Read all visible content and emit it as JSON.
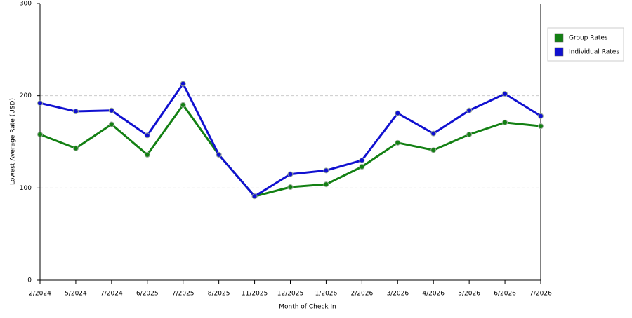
{
  "chart_data": {
    "type": "line",
    "x_label": "Month of Check In",
    "y_label": "Lowest Average Rate (USD)",
    "categories": [
      "2/2024",
      "5/2024",
      "7/2024",
      "6/2025",
      "7/2025",
      "8/2025",
      "11/2025",
      "12/2025",
      "1/2026",
      "2/2026",
      "3/2026",
      "4/2026",
      "5/2026",
      "6/2026",
      "7/2026"
    ],
    "series": [
      {
        "name": "Group Rates",
        "color": "#138013",
        "values": [
          158,
          143,
          169,
          136,
          190,
          136,
          91,
          101,
          104,
          123,
          149,
          141,
          158,
          171,
          167
        ]
      },
      {
        "name": "Individual Rates",
        "color": "#1010d0",
        "values": [
          192,
          183,
          184,
          157,
          213,
          136,
          91,
          115,
          119,
          130,
          181,
          159,
          184,
          202,
          178
        ]
      }
    ],
    "ylim": [
      0,
      300
    ],
    "yticks": [
      0,
      100,
      200,
      300
    ],
    "grid": true,
    "legend": "right"
  }
}
